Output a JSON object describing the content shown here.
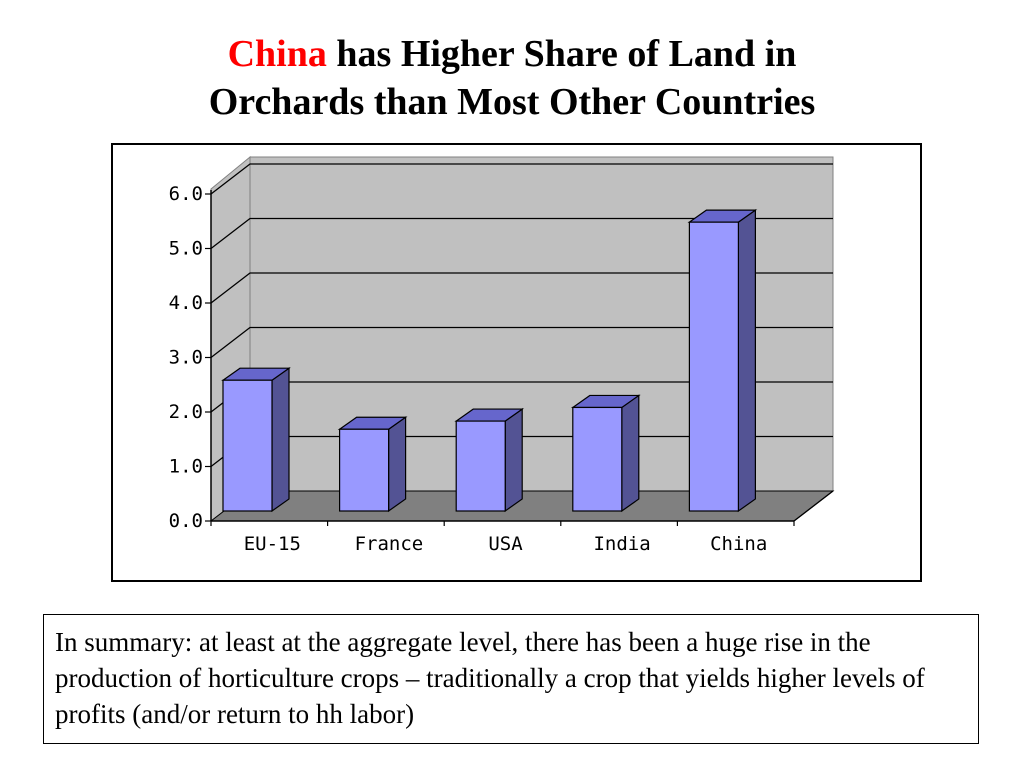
{
  "title": {
    "highlight": "China",
    "rest_line1": "has Higher Share of Land in",
    "line2": "Orchards than Most Other Countries"
  },
  "colors": {
    "highlight": "#ff0000",
    "bar_front": "#9999ff",
    "bar_side": "#535394",
    "bar_top": "#6666cc",
    "plot_wall": "#c0c0c0",
    "plot_floor": "#808080"
  },
  "chart_data": {
    "type": "bar",
    "style": "3d",
    "categories": [
      "EU-15",
      "France",
      "USA",
      "India",
      "China"
    ],
    "values": [
      2.4,
      1.5,
      1.65,
      1.9,
      5.3
    ],
    "yticks": [
      "0.0",
      "1.0",
      "2.0",
      "3.0",
      "4.0",
      "5.0",
      "6.0"
    ],
    "ylim": [
      0,
      6
    ],
    "grid": true,
    "legend": false
  },
  "summary": "In summary:  at least at the aggregate level, there has been a huge rise in the production of horticulture crops – traditionally a crop that yields higher levels of profits (and/or return to hh labor)"
}
